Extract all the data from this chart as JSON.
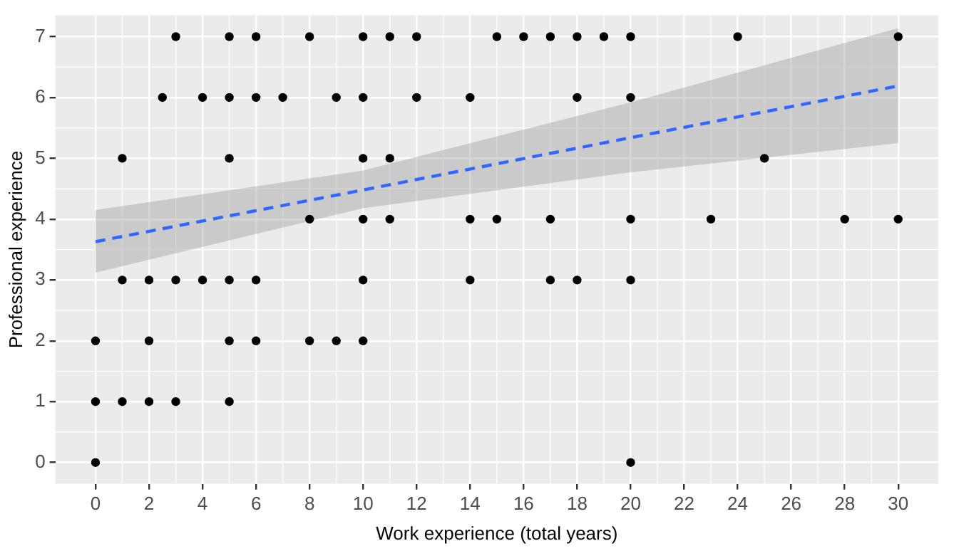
{
  "chart_data": {
    "type": "scatter",
    "xlabel": "Work experience (total years)",
    "ylabel": "Professional experience",
    "xlim": [
      -1.5,
      31.5
    ],
    "xticks": [
      0,
      2,
      4,
      6,
      8,
      10,
      12,
      14,
      16,
      18,
      20,
      22,
      24,
      26,
      28,
      30
    ],
    "ylim": [
      -0.35,
      7.35
    ],
    "yticks": [
      0,
      1,
      2,
      3,
      4,
      5,
      6,
      7
    ],
    "grid": true,
    "legend": false,
    "series": [
      {
        "type": "scatter",
        "color": "#000000",
        "marker": "circle",
        "x": [
          3,
          5,
          6,
          8,
          10,
          11,
          12,
          15,
          16,
          17,
          18,
          19,
          20,
          24,
          30,
          2.5,
          4,
          5,
          6,
          7,
          9,
          10,
          12,
          14,
          18,
          20,
          1,
          5,
          10,
          11,
          25,
          8,
          10,
          11,
          14,
          15,
          17,
          20,
          23,
          28,
          30,
          1,
          2,
          3,
          4,
          5,
          6,
          10,
          14,
          17,
          18,
          20,
          0,
          2,
          5,
          6,
          8,
          9,
          10,
          0,
          1,
          2,
          3,
          5,
          0,
          20
        ],
        "values": [
          7,
          7,
          7,
          7,
          7,
          7,
          7,
          7,
          7,
          7,
          7,
          7,
          7,
          7,
          7,
          6,
          6,
          6,
          6,
          6,
          6,
          6,
          6,
          6,
          6,
          6,
          5,
          5,
          5,
          5,
          5,
          4,
          4,
          4,
          4,
          4,
          4,
          4,
          4,
          4,
          4,
          3,
          3,
          3,
          3,
          3,
          3,
          3,
          3,
          3,
          3,
          3,
          2,
          2,
          2,
          2,
          2,
          2,
          2,
          1,
          1,
          1,
          1,
          1,
          0,
          0
        ]
      },
      {
        "type": "line",
        "color": "#3366ff",
        "line_style": "dashed",
        "marker": "none",
        "x": [
          0,
          10,
          20,
          30
        ],
        "values": [
          3.63,
          4.48,
          5.34,
          6.19
        ],
        "lower": [
          3.12,
          4.18,
          4.77,
          5.25
        ],
        "upper": [
          4.15,
          4.8,
          5.92,
          7.14
        ]
      }
    ]
  }
}
